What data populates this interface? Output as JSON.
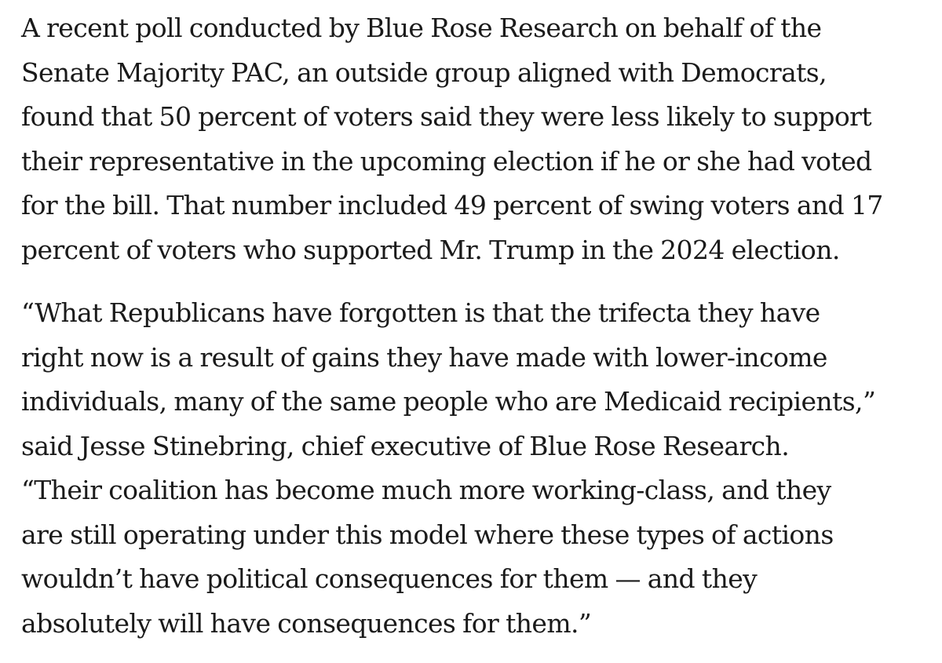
{
  "article": {
    "paragraphs": [
      {
        "lines": [
          "A recent poll conducted by Blue Rose Research on behalf of the",
          "Senate Majority PAC, an outside group aligned with Democrats,",
          "found that 50 percent of voters said they were less likely to support",
          "their representative in the upcoming election if he or she had voted",
          "for the bill. That number included 49 percent of swing voters and 17",
          "percent of voters who supported Mr. Trump in the 2024 election."
        ]
      },
      {
        "lines": [
          "“What Republicans have forgotten is that the trifecta they have",
          "right now is a result of gains they have made with lower-income",
          "individuals, many of the same people who are Medicaid recipients,”",
          "said Jesse Stinebring, chief executive of Blue Rose Research.",
          "“Their coalition has become much more working-class, and they",
          "are still operating under this model where these types of actions",
          "wouldn’t have political consequences for them — and they",
          "absolutely will have consequences for them.”"
        ]
      }
    ]
  }
}
